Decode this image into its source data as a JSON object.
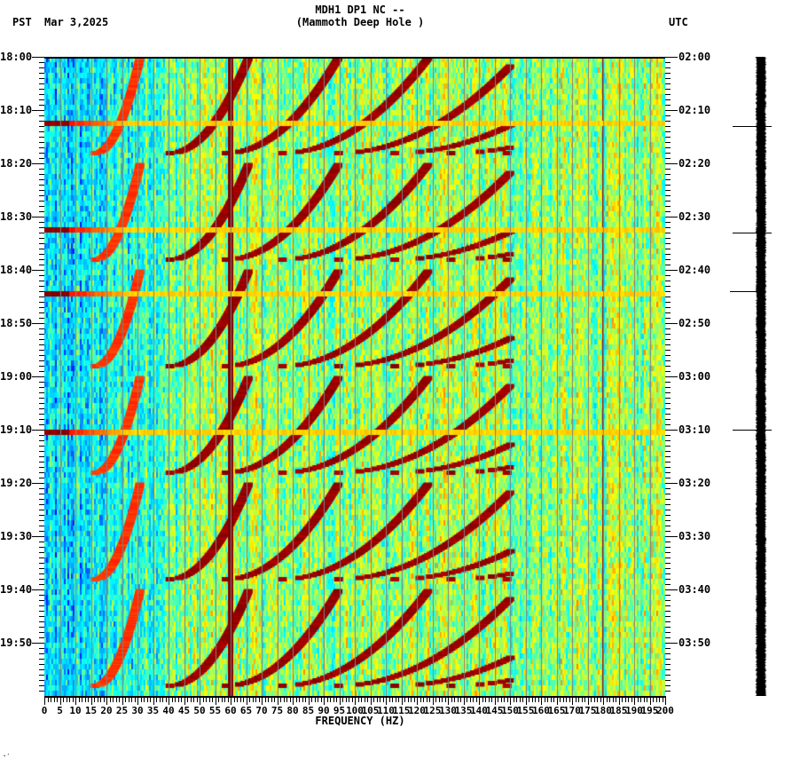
{
  "header": {
    "title_line1": "MDH1 DP1 NC --",
    "title_line2": "(Mammoth Deep Hole )",
    "left_timezone": "PST",
    "date": "Mar 3,2025",
    "right_timezone": "UTC"
  },
  "footer": {
    "corner_mark": "·′"
  },
  "chart_data": {
    "type": "heatmap",
    "title": "MDH1 DP1 NC -- (Mammoth Deep Hole )",
    "subtitle": "Mar 3,2025",
    "xlabel": "FREQUENCY (HZ)",
    "ylabel_left": "PST",
    "ylabel_right": "UTC",
    "xlim": [
      0,
      200
    ],
    "x_ticks": [
      0,
      5,
      10,
      15,
      20,
      25,
      30,
      35,
      40,
      45,
      50,
      55,
      60,
      65,
      70,
      75,
      80,
      85,
      90,
      95,
      100,
      105,
      110,
      115,
      120,
      125,
      130,
      135,
      140,
      145,
      150,
      155,
      160,
      165,
      170,
      175,
      180,
      185,
      190,
      195,
      200
    ],
    "x_tick_labels": [
      "0",
      "5",
      "10",
      "15",
      "20",
      "25",
      "30",
      "35",
      "40",
      "45",
      "50",
      "55",
      "60",
      "65",
      "70",
      "75",
      "80",
      "85",
      "90",
      "95",
      "100",
      "105",
      "110",
      "115",
      "120",
      "125",
      "130",
      "135",
      "140",
      "145",
      "150",
      "155",
      "160",
      "165",
      "170",
      "175",
      "180",
      "185",
      "190",
      "195",
      "200"
    ],
    "y_ticks_left": [
      "18:00",
      "18:10",
      "18:20",
      "18:30",
      "18:40",
      "18:50",
      "19:00",
      "19:10",
      "19:20",
      "19:30",
      "19:40",
      "19:50"
    ],
    "y_ticks_right": [
      "02:00",
      "02:10",
      "02:20",
      "02:30",
      "02:40",
      "02:50",
      "03:00",
      "03:10",
      "03:20",
      "03:30",
      "03:40",
      "03:50"
    ],
    "time_range_minutes": 120,
    "minor_tick_interval_min": 1,
    "grid": {
      "vertical_every_hz": 5,
      "color": "#808080"
    },
    "colormap": [
      "#0000ff",
      "#00aaff",
      "#00ffff",
      "#80ff80",
      "#ffff00",
      "#ff8000",
      "#ff0000",
      "#800000"
    ],
    "features": {
      "persistent_line_hz": 60,
      "weak_line_hz": 180,
      "arc_cycle_minutes": 20,
      "arc_cycle_starts_min": [
        0,
        20,
        40,
        60,
        80,
        100
      ],
      "arc_harmonics": 8,
      "noise_floor_low_freq": "blue (< 25 Hz)",
      "noise_floor_high_freq": "green/yellow (> 25 Hz)",
      "horizontal_bursts_min": [
        12.5,
        32.5,
        44.5,
        70.5
      ]
    }
  },
  "seismogram": {
    "marker_minutes": [
      13,
      33,
      44,
      70
    ]
  }
}
